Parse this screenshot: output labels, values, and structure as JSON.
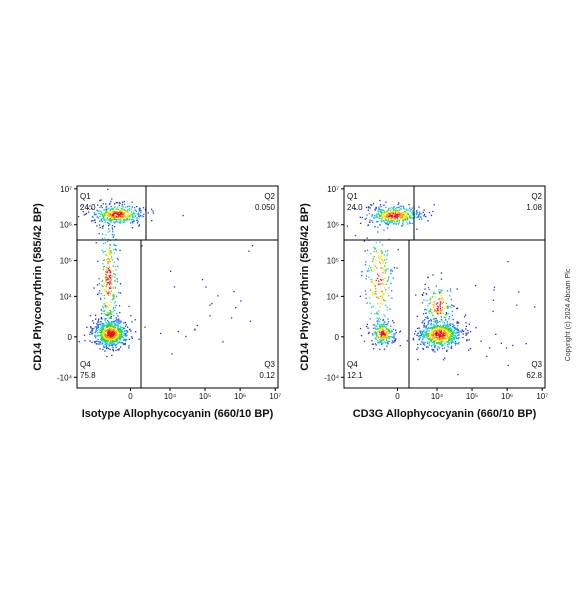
{
  "chart_data": [
    {
      "type": "density",
      "x_label": "Isotype Allophycocyanin (660/10 BP)",
      "y_label": "CD14 Phycoerythrin (585/42 BP)",
      "xscale": "biexponential",
      "yscale": "biexponential",
      "xlim": [
        -25000,
        12000000
      ],
      "ylim": [
        -20000,
        12000000
      ],
      "xticks": [
        0,
        {
          "value": 10000,
          "label": "10⁴"
        },
        {
          "value": 100000,
          "label": "10⁵"
        },
        {
          "value": 1000000,
          "label": "10⁶"
        },
        {
          "value": 10000000,
          "label": "10⁷"
        }
      ],
      "yticks": [
        {
          "value": -10000,
          "label": "-10⁴"
        },
        0,
        {
          "value": 10000,
          "label": "10⁴"
        },
        {
          "value": 100000,
          "label": "10⁵"
        },
        {
          "value": 1000000,
          "label": "10⁶"
        },
        {
          "value": 10000000,
          "label": "10⁷"
        }
      ],
      "quadrants": {
        "names": [
          "Q1",
          "Q2",
          "Q3",
          "Q4"
        ],
        "values": [
          24.0,
          0.05,
          0.12,
          75.8
        ],
        "value_labels": [
          "24.0",
          "0.050",
          "0.12",
          "75.8"
        ]
      }
    },
    {
      "type": "density",
      "x_label": "CD3G Allophycocyanin (660/10 BP)",
      "y_label": "CD14 Phycoerythrin (585/42 BP)",
      "xscale": "biexponential",
      "yscale": "biexponential",
      "xlim": [
        -25000,
        12000000
      ],
      "ylim": [
        -20000,
        12000000
      ],
      "xticks": [
        0,
        {
          "value": 10000,
          "label": "10⁴"
        },
        {
          "value": 100000,
          "label": "10⁵"
        },
        {
          "value": 1000000,
          "label": "10⁶"
        },
        {
          "value": 10000000,
          "label": "10⁷"
        }
      ],
      "yticks": [
        {
          "value": -10000,
          "label": "-10⁴"
        },
        0,
        {
          "value": 10000,
          "label": "10⁴"
        },
        {
          "value": 100000,
          "label": "10⁵"
        },
        {
          "value": 1000000,
          "label": "10⁶"
        },
        {
          "value": 10000000,
          "label": "10⁷"
        }
      ],
      "quadrants": {
        "names": [
          "Q1",
          "Q2",
          "Q3",
          "Q4"
        ],
        "values": [
          24.0,
          1.08,
          62.8,
          12.1
        ],
        "value_labels": [
          "24.0",
          "1.08",
          "62.8",
          "12.1"
        ]
      }
    }
  ],
  "copyright": "Copyright (c) 2024 Abcam Plc"
}
